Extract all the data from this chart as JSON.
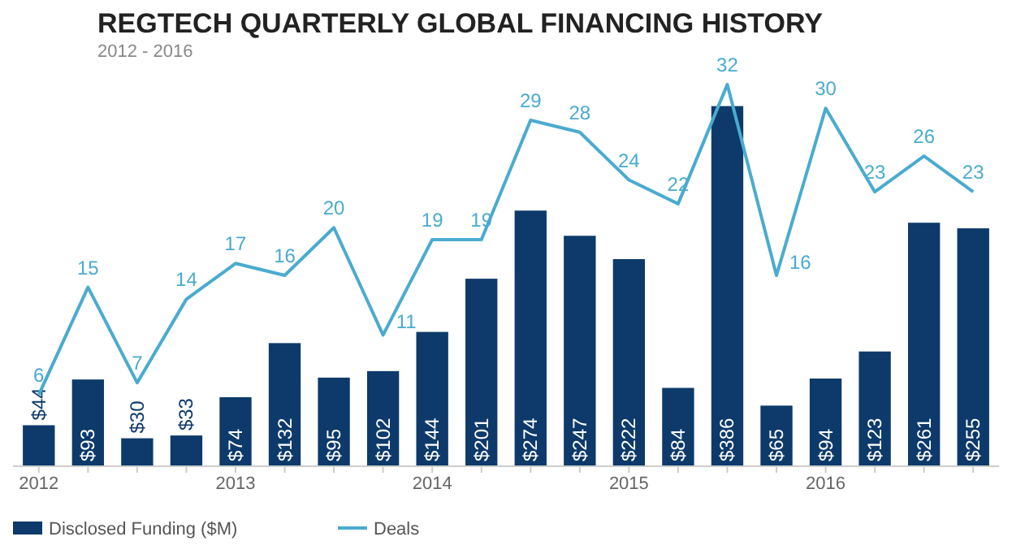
{
  "chart_data": {
    "type": "bar",
    "title": "REGTECH QUARTERLY GLOBAL FINANCING HISTORY",
    "subtitle": "2012 - 2016",
    "categories": [
      "2012",
      null,
      null,
      null,
      "2013",
      null,
      null,
      null,
      "2014",
      null,
      null,
      null,
      "2015",
      null,
      null,
      null,
      "2016",
      null,
      null,
      null
    ],
    "series": [
      {
        "name": "Disclosed Funding ($M)",
        "color": "#0d3a6b",
        "values": [
          44,
          93,
          30,
          33,
          74,
          132,
          95,
          102,
          144,
          201,
          274,
          247,
          222,
          84,
          386,
          65,
          94,
          123,
          261,
          255
        ],
        "value_labels": [
          "$44",
          "$93",
          "$30",
          "$33",
          "$74",
          "$132",
          "$95",
          "$102",
          "$144",
          "$201",
          "$274",
          "$247",
          "$222",
          "$84",
          "$386",
          "$65",
          "$94",
          "$123",
          "$261",
          "$255"
        ]
      },
      {
        "name": "Deals",
        "type": "line",
        "axis": "y2",
        "color": "#4aabcf",
        "values": [
          6,
          15,
          7,
          14,
          17,
          16,
          20,
          11,
          19,
          19,
          29,
          28,
          24,
          22,
          32,
          16,
          30,
          23,
          26,
          23
        ],
        "value_labels": [
          "6",
          "15",
          "7",
          "14",
          "17",
          "16",
          "20",
          "11",
          "19",
          "19",
          "29",
          "28",
          "24",
          "22",
          "32",
          "16",
          "30",
          "23",
          "26",
          "23"
        ]
      }
    ],
    "tick_labels": "x",
    "legend": "bottom left",
    "marker": "none",
    "line_style": "solid"
  }
}
